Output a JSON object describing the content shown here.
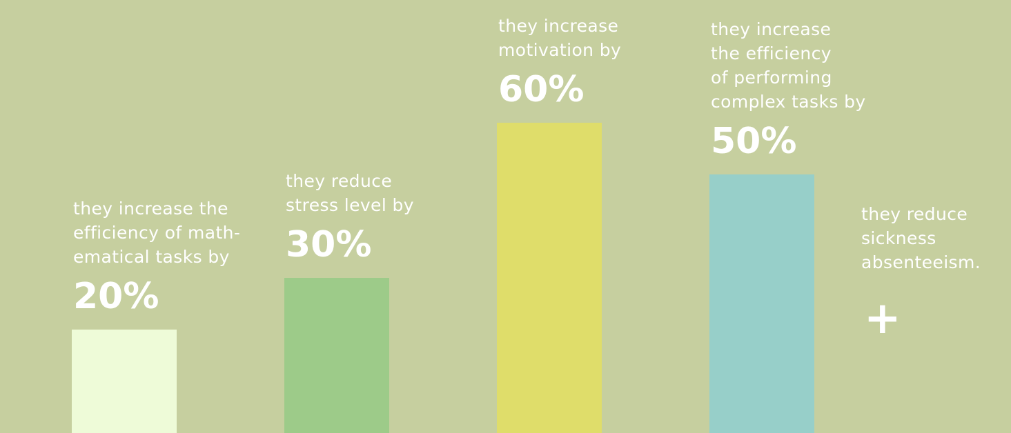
{
  "chart_data": {
    "type": "bar",
    "categories": [
      "they increase the\nefficiency of math-\nematical tasks by",
      "they reduce\nstress level by",
      "they increase\nmotivation by",
      "they increase\nthe efficiency\nof performing\ncomplex tasks by"
    ],
    "values": [
      20,
      30,
      60,
      50
    ],
    "value_labels": [
      "20%",
      "30%",
      "60%",
      "50%"
    ],
    "bar_colors": [
      "#eefbd8",
      "#9dcb89",
      "#dfdd6a",
      "#97cfc9"
    ],
    "ylim": [
      0,
      100
    ],
    "grid": false,
    "legend": "none",
    "extra_item": {
      "text": "they reduce\nsickness\nabsenteeism.",
      "symbol": "+"
    }
  },
  "colors": {
    "background": "#c6cf9f",
    "text": "#ffffff"
  }
}
